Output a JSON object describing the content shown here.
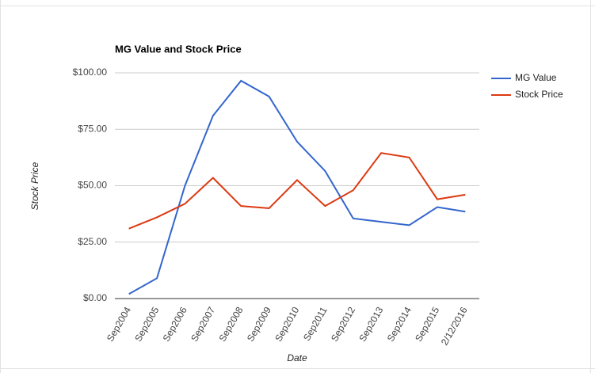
{
  "chart_data": {
    "type": "line",
    "title": "MG Value and Stock Price",
    "x_label": "Date",
    "y_label": "Stock Price",
    "categories": [
      "Sep2004",
      "Sep2005",
      "Sep2006",
      "Sep2007",
      "Sep2008",
      "Sep2009",
      "Sep2010",
      "Sep2011",
      "Sep2012",
      "Sep2013",
      "Sep2014",
      "Sep2015",
      "2/12/2016"
    ],
    "series": [
      {
        "name": "MG Value",
        "color": "#3366cc",
        "values": [
          2,
          9,
          50,
          81,
          96.5,
          89.5,
          69.5,
          56.5,
          35.5,
          34,
          32.5,
          40.5,
          38.5
        ]
      },
      {
        "name": "Stock Price",
        "color": "#dc3912",
        "values": [
          31,
          36,
          42,
          53.5,
          41,
          40,
          52.5,
          41,
          48,
          64.5,
          62.5,
          44,
          46
        ]
      }
    ],
    "ylim": [
      0,
      100
    ],
    "yticks": [
      {
        "value": 0,
        "label": "$0.00"
      },
      {
        "value": 25,
        "label": "$25.00"
      },
      {
        "value": 50,
        "label": "$50.00"
      },
      {
        "value": 75,
        "label": "$75.00"
      },
      {
        "value": 100,
        "label": "$100.00"
      }
    ],
    "grid": true,
    "legend": "right"
  }
}
